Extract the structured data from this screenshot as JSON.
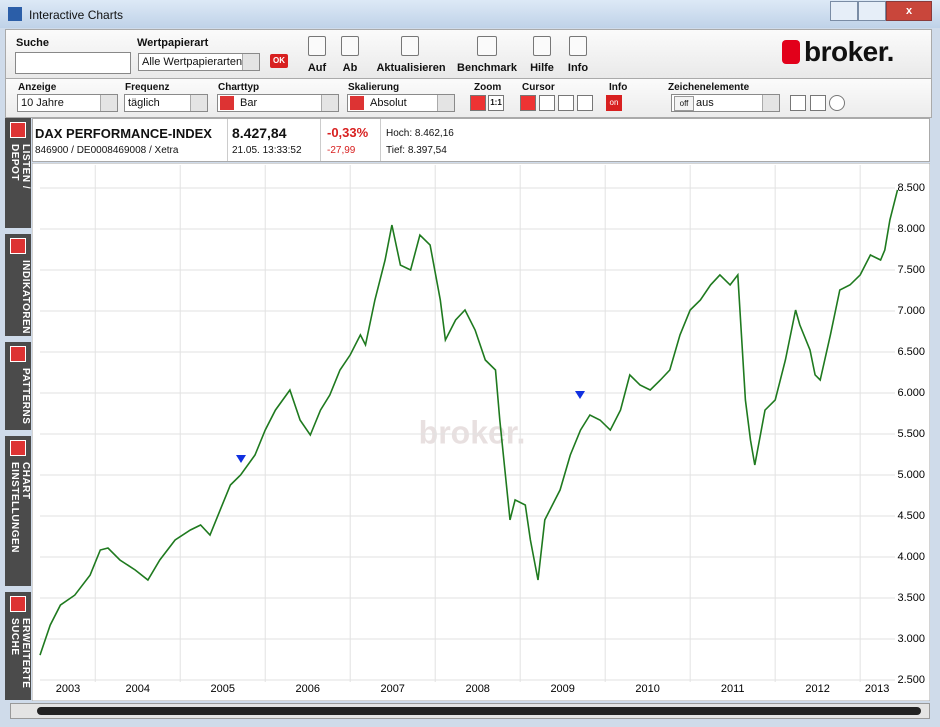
{
  "window": {
    "title": "Interactive Charts"
  },
  "toolbar": {
    "search_label": "Suche",
    "type_label": "Wertpapierart",
    "type_value": "Alle Wertpapierarten",
    "ok": "OK",
    "buttons": [
      "Auf",
      "Ab",
      "Aktualisieren",
      "Benchmark",
      "Hilfe",
      "Info"
    ]
  },
  "logo": "broker.",
  "options": [
    {
      "label": "Anzeige",
      "value": "10 Jahre"
    },
    {
      "label": "Frequenz",
      "value": "täglich"
    },
    {
      "label": "Charttyp",
      "value": "Bar"
    },
    {
      "label": "Skalierung",
      "value": "Absolut"
    }
  ],
  "zoom": {
    "label": "Zoom",
    "reset": "1:1"
  },
  "cursor": {
    "label": "Cursor"
  },
  "info": {
    "label": "Info",
    "value": "on"
  },
  "drawing": {
    "label": "Zeichenelemente",
    "toggle": "off",
    "value": "aus"
  },
  "sidebar": {
    "tabs": [
      "LISTEN / DEPOT",
      "INDIKATOREN",
      "PATTERNS",
      "CHART EINSTELLUNGEN",
      "ERWEITERTE SUCHE"
    ]
  },
  "instrument": {
    "name": "DAX PERFORMANCE-INDEX",
    "ids": "846900 / DE0008469008 / Xetra",
    "price": "8.427,84",
    "time": "21.05. 13:33:52",
    "change_pct": "-0,33%",
    "change_abs": "-27,99",
    "high": "Hoch: 8.462,16",
    "low": "Tief: 8.397,54"
  },
  "watermark": "broker.",
  "chart_data": {
    "type": "line",
    "color": "#1f7a1f",
    "grid": true,
    "x": [
      2003.35,
      2003.47,
      2003.59,
      2003.76,
      2003.94,
      2004.06,
      2004.15,
      2004.29,
      2004.47,
      2004.62,
      2004.76,
      2004.94,
      2005.12,
      2005.24,
      2005.35,
      2005.47,
      2005.59,
      2005.71,
      2005.88,
      2006.0,
      2006.12,
      2006.29,
      2006.41,
      2006.53,
      2006.65,
      2006.76,
      2006.88,
      2007.0,
      2007.12,
      2007.18,
      2007.29,
      2007.41,
      2007.49,
      2007.59,
      2007.71,
      2007.82,
      2007.94,
      2008.06,
      2008.12,
      2008.24,
      2008.35,
      2008.47,
      2008.59,
      2008.71,
      2008.76,
      2008.82,
      2008.88,
      2008.94,
      2009.06,
      2009.12,
      2009.21,
      2009.29,
      2009.41,
      2009.47,
      2009.59,
      2009.71,
      2009.82,
      2009.94,
      2010.06,
      2010.18,
      2010.29,
      2010.41,
      2010.53,
      2010.65,
      2010.76,
      2010.88,
      2011.0,
      2011.12,
      2011.24,
      2011.35,
      2011.47,
      2011.56,
      2011.65,
      2011.71,
      2011.76,
      2011.88,
      2012.0,
      2012.12,
      2012.24,
      2012.29,
      2012.41,
      2012.47,
      2012.53,
      2012.65,
      2012.76,
      2012.88,
      2013.0,
      2013.12,
      2013.24,
      2013.29,
      2013.35,
      2013.44
    ],
    "values": [
      2804,
      3170,
      3414,
      3536,
      3780,
      4086,
      4110,
      3964,
      3842,
      3720,
      3964,
      4208,
      4330,
      4390,
      4268,
      4574,
      4878,
      5000,
      5244,
      5548,
      5792,
      6036,
      5670,
      5488,
      5792,
      5976,
      6280,
      6464,
      6708,
      6586,
      7134,
      7622,
      8048,
      7560,
      7500,
      7926,
      7804,
      7134,
      6646,
      6890,
      7012,
      6768,
      6402,
      6280,
      5670,
      5060,
      4452,
      4696,
      4634,
      4208,
      3720,
      4452,
      4696,
      4818,
      5244,
      5548,
      5732,
      5670,
      5548,
      5792,
      6220,
      6098,
      6036,
      6158,
      6280,
      6708,
      7012,
      7134,
      7318,
      7440,
      7318,
      7440,
      5914,
      5426,
      5122,
      5792,
      5914,
      6402,
      7012,
      6830,
      6524,
      6220,
      6158,
      6708,
      7256,
      7318,
      7440,
      7682,
      7622,
      7744,
      8110,
      8476
    ],
    "xlim": [
      2003.35,
      2013.41
    ],
    "xticks": [
      2004,
      2005,
      2006,
      2007,
      2008,
      2009,
      2010,
      2011,
      2012,
      2013
    ],
    "x_labels": [
      {
        "value": 2003.68,
        "label": "2003"
      },
      {
        "value": 2004.5,
        "label": "2004"
      },
      {
        "value": 2005.5,
        "label": "2005"
      },
      {
        "value": 2006.5,
        "label": "2006"
      },
      {
        "value": 2007.5,
        "label": "2007"
      },
      {
        "value": 2008.5,
        "label": "2008"
      },
      {
        "value": 2009.5,
        "label": "2009"
      },
      {
        "value": 2010.5,
        "label": "2010"
      },
      {
        "value": 2011.5,
        "label": "2011"
      },
      {
        "value": 2012.5,
        "label": "2012"
      },
      {
        "value": 2013.2,
        "label": "2013"
      }
    ],
    "ylim": [
      2476,
      8780
    ],
    "yticks": [
      {
        "value": 2500,
        "label": "2.500"
      },
      {
        "value": 3000,
        "label": "3.000"
      },
      {
        "value": 3500,
        "label": "3.500"
      },
      {
        "value": 4000,
        "label": "4.000"
      },
      {
        "value": 4500,
        "label": "4.500"
      },
      {
        "value": 5000,
        "label": "5.000"
      },
      {
        "value": 5500,
        "label": "5.500"
      },
      {
        "value": 6000,
        "label": "6.000"
      },
      {
        "value": 6500,
        "label": "6.500"
      },
      {
        "value": 7000,
        "label": "7.000"
      },
      {
        "value": 7500,
        "label": "7.500"
      },
      {
        "value": 8000,
        "label": "8.000"
      },
      {
        "value": 8500,
        "label": "8.500"
      }
    ]
  }
}
